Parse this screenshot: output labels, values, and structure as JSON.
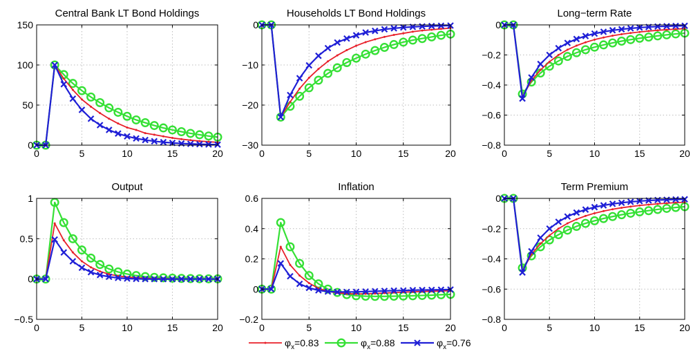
{
  "legend": {
    "items": [
      {
        "symbol": "φ",
        "sub": "x",
        "text": "=0.83",
        "color": "#e8202a",
        "marker": "dot"
      },
      {
        "symbol": "φ",
        "sub": "x",
        "text": "=0.88",
        "color": "#35e035",
        "marker": "circle"
      },
      {
        "symbol": "φ",
        "sub": "x",
        "text": "=0.76",
        "color": "#1f1fd6",
        "marker": "x"
      }
    ]
  },
  "colors": {
    "red": "#e8202a",
    "green": "#35e035",
    "blue": "#1f1fd6",
    "grid": "#bdbdbd"
  },
  "chart_data": [
    {
      "type": "line",
      "title": "Central Bank LT Bond Holdings",
      "xlim": [
        0,
        20
      ],
      "ylim": [
        0,
        150
      ],
      "xticks": [
        0,
        5,
        10,
        15,
        20
      ],
      "yticks": [
        0,
        50,
        100,
        150
      ],
      "ytick_labels": [
        "0",
        "50",
        "100",
        "150"
      ],
      "grid": true,
      "x": [
        0,
        1,
        2,
        3,
        4,
        5,
        6,
        7,
        8,
        9,
        10,
        11,
        12,
        13,
        14,
        15,
        16,
        17,
        18,
        19,
        20
      ],
      "series": [
        {
          "name": "φx=0.83",
          "color": "#e8202a",
          "marker": "dot",
          "values": [
            0,
            0,
            100,
            83,
            69,
            57,
            48,
            40,
            33,
            27,
            22,
            19,
            15,
            13,
            11,
            9,
            7.5,
            6.2,
            5.1,
            4.3,
            3.5
          ]
        },
        {
          "name": "φx=0.88",
          "color": "#35e035",
          "marker": "circle",
          "values": [
            0,
            0,
            100,
            88,
            77,
            68,
            60,
            53,
            46.5,
            41,
            36,
            31.5,
            28,
            24.5,
            21.5,
            19,
            16.8,
            14.7,
            13,
            11.4,
            10
          ]
        },
        {
          "name": "φx=0.76",
          "color": "#1f1fd6",
          "marker": "x",
          "values": [
            0,
            0,
            100,
            76,
            58,
            44,
            33,
            25,
            19,
            14.5,
            11,
            8.4,
            6.4,
            4.9,
            3.7,
            2.8,
            2.1,
            1.6,
            1.2,
            0.9,
            0.7
          ]
        }
      ]
    },
    {
      "type": "line",
      "title": "Households LT Bond Holdings",
      "xlim": [
        0,
        20
      ],
      "ylim": [
        -30,
        0
      ],
      "xticks": [
        0,
        5,
        10,
        15,
        20
      ],
      "yticks": [
        -30,
        -20,
        -10,
        0
      ],
      "ytick_labels": [
        "−30",
        "−20",
        "−10",
        "0"
      ],
      "grid": true,
      "x": [
        0,
        1,
        2,
        3,
        4,
        5,
        6,
        7,
        8,
        9,
        10,
        11,
        12,
        13,
        14,
        15,
        16,
        17,
        18,
        19,
        20
      ],
      "series": [
        {
          "name": "φx=0.83",
          "color": "#e8202a",
          "marker": "dot",
          "values": [
            0,
            0,
            -23,
            -19.2,
            -15.9,
            -13.2,
            -11,
            -9.1,
            -7.6,
            -6.3,
            -5.2,
            -4.3,
            -3.6,
            -3,
            -2.5,
            -2.1,
            -1.7,
            -1.4,
            -1.2,
            -1,
            -0.8
          ]
        },
        {
          "name": "φx=0.88",
          "color": "#35e035",
          "marker": "circle",
          "values": [
            0,
            0,
            -23,
            -20.3,
            -17.8,
            -15.7,
            -13.8,
            -12.1,
            -10.7,
            -9.4,
            -8.3,
            -7.3,
            -6.4,
            -5.6,
            -4.9,
            -4.3,
            -3.8,
            -3.4,
            -3,
            -2.6,
            -2.3
          ]
        },
        {
          "name": "φx=0.76",
          "color": "#1f1fd6",
          "marker": "x",
          "values": [
            0,
            0,
            -23,
            -17.5,
            -13.3,
            -10.1,
            -7.7,
            -5.8,
            -4.4,
            -3.4,
            -2.6,
            -1.9,
            -1.5,
            -1.1,
            -0.85,
            -0.65,
            -0.5,
            -0.38,
            -0.29,
            -0.22,
            -0.17
          ]
        }
      ]
    },
    {
      "type": "line",
      "title": "Long−term Rate",
      "xlim": [
        0,
        20
      ],
      "ylim": [
        -0.8,
        0
      ],
      "xticks": [
        0,
        5,
        10,
        15,
        20
      ],
      "yticks": [
        -0.8,
        -0.6,
        -0.4,
        -0.2,
        0
      ],
      "ytick_labels": [
        "−0.8",
        "−0.6",
        "−0.4",
        "−0.2",
        "0"
      ],
      "grid": true,
      "x": [
        0,
        1,
        2,
        3,
        4,
        5,
        6,
        7,
        8,
        9,
        10,
        11,
        12,
        13,
        14,
        15,
        16,
        17,
        18,
        19,
        20
      ],
      "series": [
        {
          "name": "φx=0.83",
          "color": "#e8202a",
          "marker": "dot",
          "values": [
            0,
            0,
            -0.48,
            -0.37,
            -0.3,
            -0.245,
            -0.2,
            -0.165,
            -0.138,
            -0.116,
            -0.098,
            -0.084,
            -0.072,
            -0.062,
            -0.054,
            -0.047,
            -0.041,
            -0.036,
            -0.032,
            -0.028,
            -0.025
          ]
        },
        {
          "name": "φx=0.88",
          "color": "#35e035",
          "marker": "circle",
          "values": [
            0,
            0,
            -0.46,
            -0.38,
            -0.32,
            -0.275,
            -0.24,
            -0.21,
            -0.185,
            -0.165,
            -0.148,
            -0.133,
            -0.12,
            -0.108,
            -0.098,
            -0.089,
            -0.081,
            -0.073,
            -0.066,
            -0.06,
            -0.055
          ]
        },
        {
          "name": "φx=0.76",
          "color": "#1f1fd6",
          "marker": "x",
          "values": [
            0,
            0,
            -0.49,
            -0.35,
            -0.26,
            -0.2,
            -0.155,
            -0.12,
            -0.094,
            -0.074,
            -0.058,
            -0.046,
            -0.036,
            -0.029,
            -0.023,
            -0.018,
            -0.014,
            -0.011,
            -0.009,
            -0.007,
            -0.006
          ]
        }
      ]
    },
    {
      "type": "line",
      "title": "Output",
      "xlim": [
        0,
        20
      ],
      "ylim": [
        -0.5,
        1
      ],
      "xticks": [
        0,
        5,
        10,
        15,
        20
      ],
      "yticks": [
        -0.5,
        0,
        0.5,
        1
      ],
      "ytick_labels": [
        "−0.5",
        "0",
        "0.5",
        "1"
      ],
      "grid": true,
      "x": [
        0,
        1,
        2,
        3,
        4,
        5,
        6,
        7,
        8,
        9,
        10,
        11,
        12,
        13,
        14,
        15,
        16,
        17,
        18,
        19,
        20
      ],
      "series": [
        {
          "name": "φx=0.83",
          "color": "#e8202a",
          "marker": "dot",
          "values": [
            0,
            0,
            0.69,
            0.48,
            0.33,
            0.22,
            0.145,
            0.095,
            0.06,
            0.038,
            0.024,
            0.015,
            0.009,
            0.006,
            0.004,
            0.003,
            0.002,
            0.001,
            0.001,
            0.0005,
            0.0003
          ]
        },
        {
          "name": "φx=0.88",
          "color": "#35e035",
          "marker": "circle",
          "values": [
            0,
            0,
            0.95,
            0.7,
            0.5,
            0.36,
            0.26,
            0.18,
            0.125,
            0.088,
            0.062,
            0.043,
            0.03,
            0.021,
            0.015,
            0.011,
            0.008,
            0.006,
            0.004,
            0.003,
            0.002
          ]
        },
        {
          "name": "φx=0.76",
          "color": "#1f1fd6",
          "marker": "x",
          "values": [
            0,
            0,
            0.49,
            0.33,
            0.22,
            0.14,
            0.085,
            0.05,
            0.028,
            0.014,
            0.006,
            0.002,
            0,
            -0.001,
            -0.001,
            -0.001,
            0,
            0,
            0,
            0,
            0
          ]
        }
      ]
    },
    {
      "type": "line",
      "title": "Inflation",
      "xlim": [
        0,
        20
      ],
      "ylim": [
        -0.2,
        0.6
      ],
      "xticks": [
        0,
        5,
        10,
        15,
        20
      ],
      "yticks": [
        -0.2,
        0,
        0.2,
        0.4,
        0.6
      ],
      "ytick_labels": [
        "−0.2",
        "0",
        "0.2",
        "0.4",
        "0.6"
      ],
      "grid": true,
      "x": [
        0,
        1,
        2,
        3,
        4,
        5,
        6,
        7,
        8,
        9,
        10,
        11,
        12,
        13,
        14,
        15,
        16,
        17,
        18,
        19,
        20
      ],
      "series": [
        {
          "name": "φx=0.83",
          "color": "#e8202a",
          "marker": "dot",
          "values": [
            0,
            0,
            0.28,
            0.16,
            0.09,
            0.04,
            0.005,
            -0.015,
            -0.025,
            -0.03,
            -0.032,
            -0.031,
            -0.029,
            -0.026,
            -0.023,
            -0.02,
            -0.018,
            -0.016,
            -0.014,
            -0.012,
            -0.011
          ]
        },
        {
          "name": "φx=0.88",
          "color": "#35e035",
          "marker": "circle",
          "values": [
            0,
            0,
            0.44,
            0.28,
            0.17,
            0.09,
            0.035,
            0,
            -0.022,
            -0.036,
            -0.044,
            -0.047,
            -0.048,
            -0.048,
            -0.047,
            -0.046,
            -0.044,
            -0.042,
            -0.04,
            -0.037,
            -0.035
          ]
        },
        {
          "name": "φx=0.76",
          "color": "#1f1fd6",
          "marker": "x",
          "values": [
            0,
            0,
            0.17,
            0.085,
            0.035,
            0.008,
            -0.008,
            -0.016,
            -0.019,
            -0.019,
            -0.018,
            -0.016,
            -0.014,
            -0.012,
            -0.01,
            -0.009,
            -0.007,
            -0.006,
            -0.005,
            -0.004,
            -0.003
          ]
        }
      ]
    },
    {
      "type": "line",
      "title": "Term Premium",
      "xlim": [
        0,
        20
      ],
      "ylim": [
        -0.8,
        0
      ],
      "xticks": [
        0,
        5,
        10,
        15,
        20
      ],
      "yticks": [
        -0.8,
        -0.6,
        -0.4,
        -0.2,
        0
      ],
      "ytick_labels": [
        "−0.8",
        "−0.6",
        "−0.4",
        "−0.2",
        "0"
      ],
      "grid": true,
      "x": [
        0,
        1,
        2,
        3,
        4,
        5,
        6,
        7,
        8,
        9,
        10,
        11,
        12,
        13,
        14,
        15,
        16,
        17,
        18,
        19,
        20
      ],
      "series": [
        {
          "name": "φx=0.83",
          "color": "#e8202a",
          "marker": "dot",
          "values": [
            0,
            0,
            -0.48,
            -0.37,
            -0.3,
            -0.245,
            -0.2,
            -0.165,
            -0.138,
            -0.116,
            -0.098,
            -0.084,
            -0.072,
            -0.062,
            -0.054,
            -0.047,
            -0.041,
            -0.036,
            -0.032,
            -0.028,
            -0.025
          ]
        },
        {
          "name": "φx=0.88",
          "color": "#35e035",
          "marker": "circle",
          "values": [
            0,
            0,
            -0.46,
            -0.38,
            -0.32,
            -0.275,
            -0.24,
            -0.21,
            -0.185,
            -0.165,
            -0.148,
            -0.133,
            -0.12,
            -0.108,
            -0.098,
            -0.089,
            -0.081,
            -0.073,
            -0.066,
            -0.06,
            -0.055
          ]
        },
        {
          "name": "φx=0.76",
          "color": "#1f1fd6",
          "marker": "x",
          "values": [
            0,
            0,
            -0.49,
            -0.35,
            -0.26,
            -0.2,
            -0.155,
            -0.12,
            -0.094,
            -0.074,
            -0.058,
            -0.046,
            -0.036,
            -0.029,
            -0.023,
            -0.018,
            -0.014,
            -0.011,
            -0.009,
            -0.007,
            -0.006
          ]
        }
      ]
    }
  ]
}
